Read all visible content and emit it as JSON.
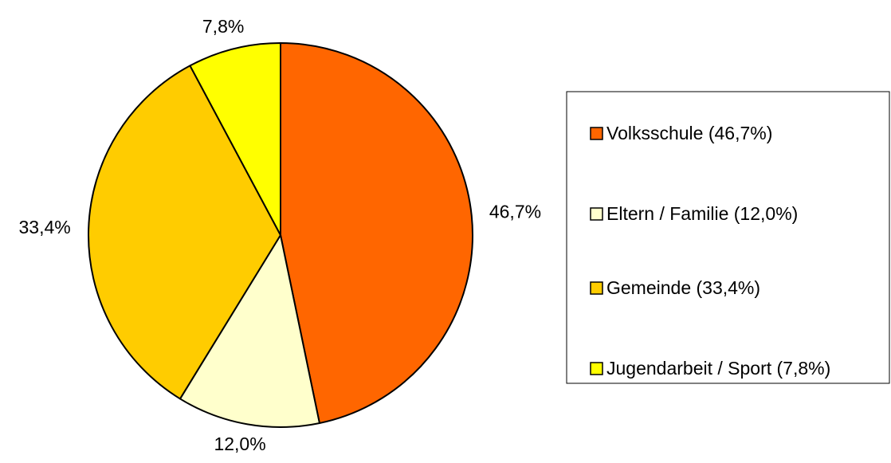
{
  "chart_data": {
    "type": "pie",
    "categories": [
      "Volksschule (46,7%)",
      "Eltern / Familie (12,0%)",
      "Gemeinde (33,4%)",
      "Jugendarbeit / Sport (7,8%)"
    ],
    "values": [
      46.7,
      12.0,
      33.4,
      7.8
    ],
    "value_labels": [
      "46,7%",
      "12,0%",
      "33,4%",
      "7,8%"
    ],
    "colors": [
      "#ff6600",
      "#ffffcc",
      "#ffcc00",
      "#ffff00"
    ],
    "legend": "right"
  }
}
